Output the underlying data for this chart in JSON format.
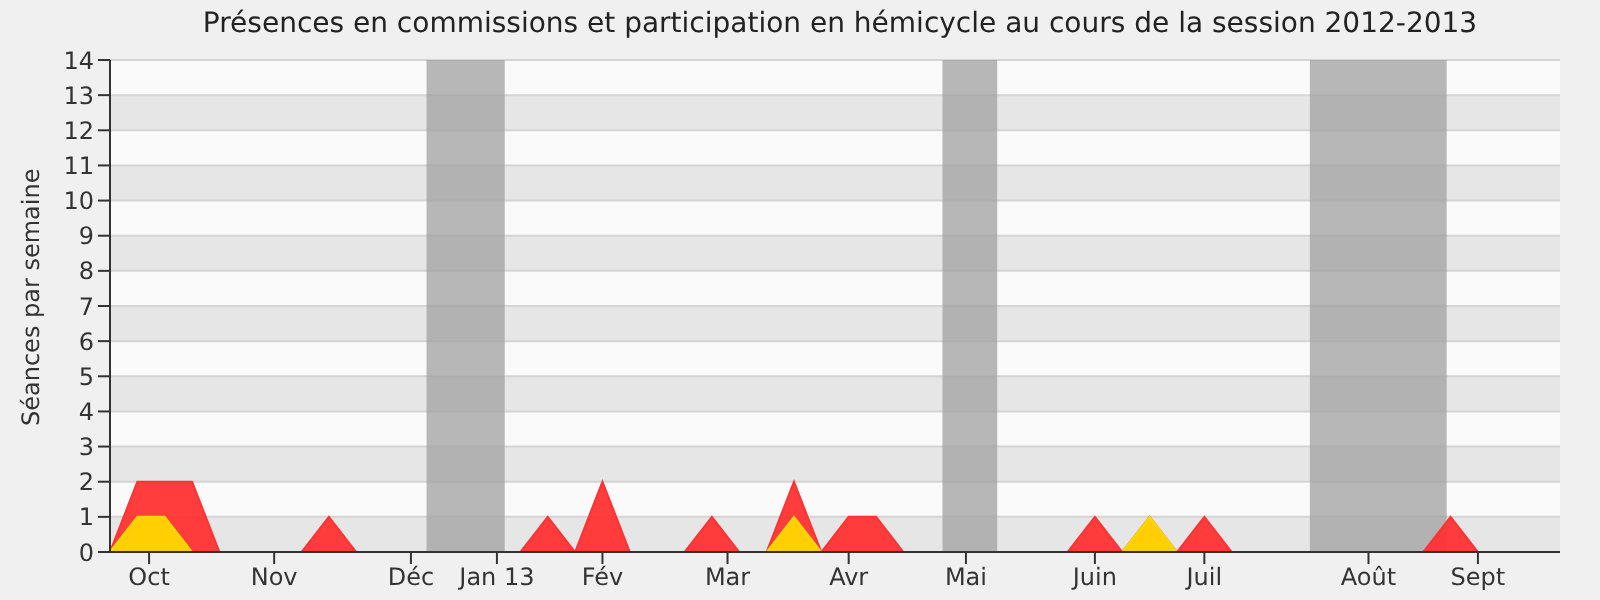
{
  "chart_data": {
    "type": "area",
    "title": "Présences en commissions et participation en hémicycle au cours de la session 2012-2013",
    "ylabel": "Séances par semaine",
    "x": [
      "2012-09-24",
      "2012-10-01",
      "2012-10-08",
      "2012-10-15",
      "2012-10-22",
      "2012-10-29",
      "2012-11-05",
      "2012-11-12",
      "2012-11-19",
      "2012-11-26",
      "2012-12-03",
      "2012-12-10",
      "2012-12-17",
      "2012-12-24",
      "2012-12-31",
      "2013-01-07",
      "2013-01-14",
      "2013-01-21",
      "2013-01-28",
      "2013-02-04",
      "2013-02-11",
      "2013-02-18",
      "2013-02-25",
      "2013-03-04",
      "2013-03-11",
      "2013-03-18",
      "2013-03-25",
      "2013-04-01",
      "2013-04-08",
      "2013-04-15",
      "2013-04-22",
      "2013-04-29",
      "2013-05-06",
      "2013-05-13",
      "2013-05-20",
      "2013-05-27",
      "2013-06-03",
      "2013-06-10",
      "2013-06-17",
      "2013-06-24",
      "2013-07-01",
      "2013-07-08",
      "2013-07-15",
      "2013-07-22",
      "2013-07-29",
      "2013-08-05",
      "2013-08-12",
      "2013-08-19",
      "2013-08-26",
      "2013-09-02",
      "2013-09-09",
      "2013-09-16",
      "2013-09-23",
      "2013-09-30"
    ],
    "series": [
      {
        "color": "#ff3333",
        "values": [
          0,
          2,
          2,
          2,
          0,
          0,
          0,
          0,
          1,
          0,
          0,
          0,
          0,
          0,
          0,
          0,
          1,
          0,
          2,
          0,
          0,
          0,
          1,
          0,
          0,
          2,
          0,
          1,
          1,
          0,
          0,
          0,
          0,
          0,
          0,
          0,
          1,
          0,
          1,
          0,
          1,
          0,
          0,
          0,
          0,
          0,
          0,
          0,
          0,
          1,
          0,
          0,
          0,
          0
        ]
      },
      {
        "color": "#ffd700",
        "values": [
          0,
          1,
          1,
          0,
          0,
          0,
          0,
          0,
          0,
          0,
          0,
          0,
          0,
          0,
          0,
          0,
          0,
          0,
          0,
          0,
          0,
          0,
          0,
          0,
          0,
          1,
          0,
          0,
          0,
          0,
          0,
          0,
          0,
          0,
          0,
          0,
          0,
          0,
          1,
          0,
          0,
          0,
          0,
          0,
          0,
          0,
          0,
          0,
          0,
          0,
          0,
          0,
          0,
          0
        ]
      }
    ],
    "xlim": [
      "2012-09-24",
      "2013-09-30"
    ],
    "xticks": [
      {
        "value": "2012-10-04",
        "label": "Oct"
      },
      {
        "value": "2012-11-05",
        "label": "Nov"
      },
      {
        "value": "2012-12-10",
        "label": "Déc"
      },
      {
        "value": "2013-01-01",
        "label": "Jan 13"
      },
      {
        "value": "2013-01-28",
        "label": "Fév"
      },
      {
        "value": "2013-03-01",
        "label": "Mar"
      },
      {
        "value": "2013-04-01",
        "label": "Avr"
      },
      {
        "value": "2013-05-01",
        "label": "Mai"
      },
      {
        "value": "2013-06-03",
        "label": "Juin"
      },
      {
        "value": "2013-07-01",
        "label": "Juil"
      },
      {
        "value": "2013-08-12",
        "label": "Août"
      },
      {
        "value": "2013-09-09",
        "label": "Sept"
      }
    ],
    "ylim": [
      0,
      14
    ],
    "yticks": [
      0,
      1,
      2,
      3,
      4,
      5,
      6,
      7,
      8,
      9,
      10,
      11,
      12,
      13,
      14
    ],
    "grid": "y",
    "bands": [
      {
        "axis": "x",
        "from": "2012-12-14",
        "to": "2013-01-03",
        "color": "#a0a0a0"
      },
      {
        "axis": "x",
        "from": "2013-04-25",
        "to": "2013-05-09",
        "color": "#a0a0a0"
      },
      {
        "axis": "x",
        "from": "2013-07-28",
        "to": "2013-09-01",
        "color": "#a0a0a0"
      }
    ]
  }
}
